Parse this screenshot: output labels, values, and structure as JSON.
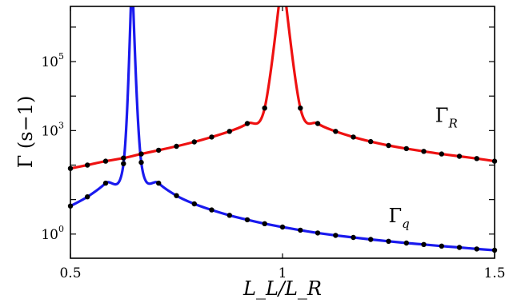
{
  "chart_data": {
    "type": "line",
    "title": "",
    "xlabel": "L_L/L_R",
    "ylabel": "Γ (s−1)",
    "xlim": [
      0.5,
      1.5
    ],
    "ylim_log10": [
      -0.7,
      6.6
    ],
    "yscale": "log",
    "grid": false,
    "legend": "none",
    "x_ticks": [
      {
        "value": 0.5,
        "label": "0.5"
      },
      {
        "value": 1,
        "label": "1"
      },
      {
        "value": 1.5,
        "label": "1.5"
      }
    ],
    "y_ticks": [
      {
        "value": 1,
        "base": "10",
        "exp": "0"
      },
      {
        "value": 1000,
        "base": "10",
        "exp": "3"
      },
      {
        "value": 100000,
        "base": "10",
        "exp": "5"
      }
    ],
    "series": [
      {
        "name": "Γ_R",
        "color": "#ee1111",
        "curve_pole_x": 1.0,
        "x": [
          0.5,
          0.54,
          0.583,
          0.625,
          0.667,
          0.708,
          0.75,
          0.792,
          0.833,
          0.875,
          0.917,
          0.958,
          1.042,
          1.083,
          1.125,
          1.167,
          1.208,
          1.25,
          1.292,
          1.333,
          1.375,
          1.417,
          1.458,
          1.5
        ],
        "y": [
          80,
          100,
          130,
          160,
          210,
          270,
          350,
          470,
          650,
          950,
          1600,
          4500,
          4500,
          1600,
          950,
          650,
          480,
          370,
          300,
          250,
          210,
          180,
          155,
          130
        ]
      },
      {
        "name": "Γ_q",
        "color": "#1a1aee",
        "curve_pole_x": 0.645,
        "x": [
          0.5,
          0.54,
          0.583,
          0.625,
          0.667,
          0.708,
          0.75,
          0.792,
          0.833,
          0.875,
          0.917,
          0.958,
          1.0,
          1.042,
          1.083,
          1.125,
          1.167,
          1.208,
          1.25,
          1.292,
          1.333,
          1.375,
          1.417,
          1.458,
          1.5
        ],
        "y": [
          6.5,
          12,
          30,
          110,
          120,
          30,
          13,
          7.5,
          5,
          3.5,
          2.6,
          2.0,
          1.6,
          1.3,
          1.08,
          0.92,
          0.8,
          0.7,
          0.62,
          0.55,
          0.5,
          0.45,
          0.41,
          0.37,
          0.34
        ]
      }
    ],
    "marker_color": "#000000",
    "annotations": [
      {
        "target": "Γ_R",
        "base": "Γ",
        "sub": "R",
        "x": 1.36,
        "y": 1800
      },
      {
        "target": "Γ_q",
        "base": "Γ",
        "sub": "q",
        "x": 1.25,
        "y": 2.2
      }
    ]
  }
}
